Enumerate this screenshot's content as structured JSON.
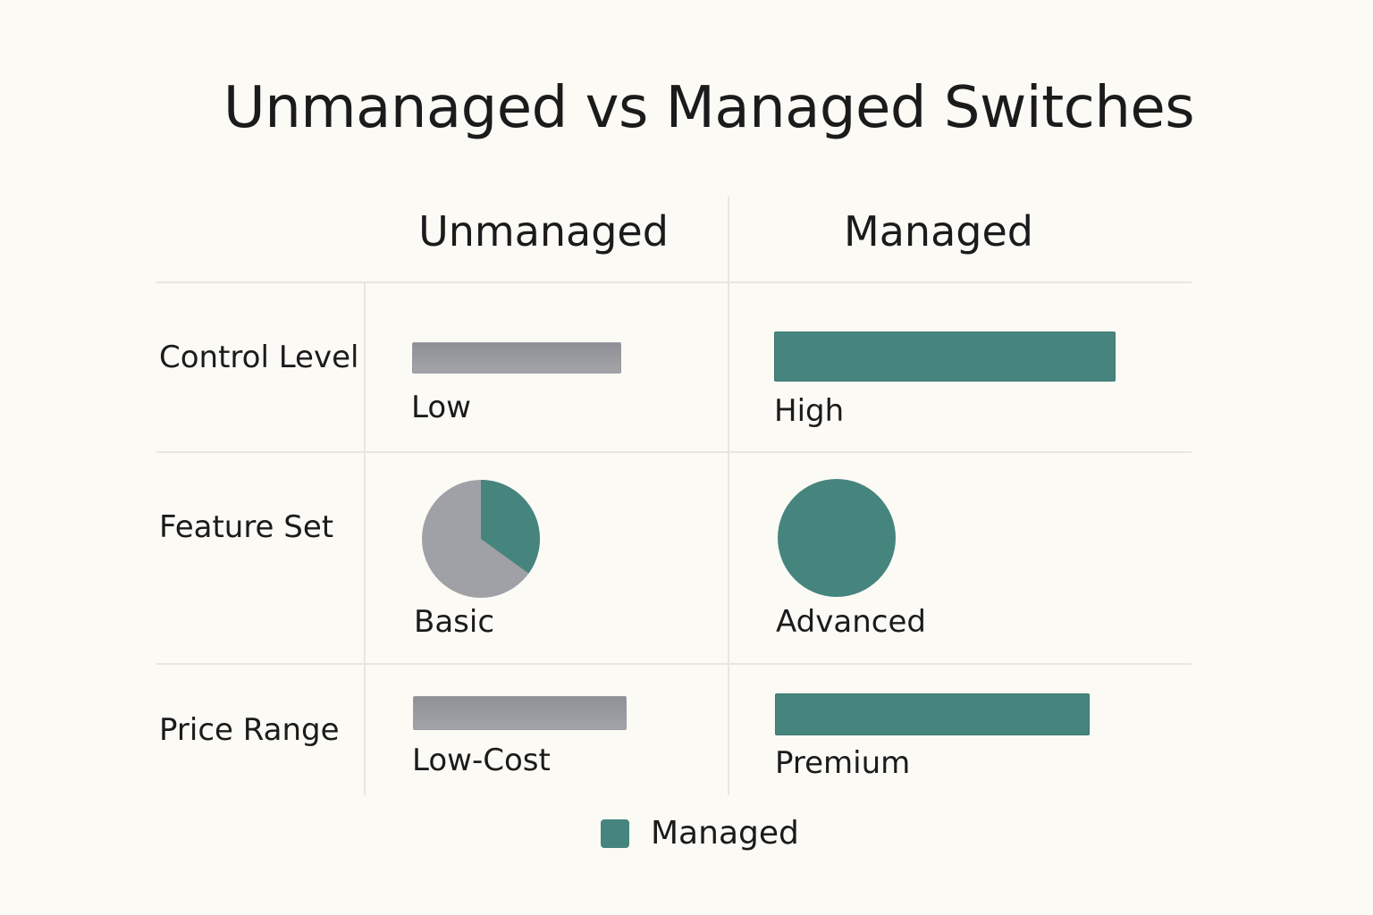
{
  "title": "Unmanaged vs Managed Switches",
  "columns": {
    "unmanaged": "Unmanaged",
    "managed": "Managed"
  },
  "rows": [
    {
      "label": "Control Level",
      "unmanaged": {
        "value_label": "Low",
        "visual": "bar"
      },
      "managed": {
        "value_label": "High",
        "visual": "bar"
      }
    },
    {
      "label": "Feature Set",
      "unmanaged": {
        "value_label": "Basic",
        "visual": "pie",
        "fill_fraction": 0.35
      },
      "managed": {
        "value_label": "Advanced",
        "visual": "pie",
        "fill_fraction": 1.0
      }
    },
    {
      "label": "Price Range",
      "unmanaged": {
        "value_label": "Low-Cost",
        "visual": "bar"
      },
      "managed": {
        "value_label": "Premium",
        "visual": "bar"
      }
    }
  ],
  "legend": {
    "label": "Managed"
  },
  "colors": {
    "managed": "#46857e",
    "unmanaged": "#a0a1a6",
    "background": "#fbfaf5",
    "gridline": "#e8e6e0"
  }
}
